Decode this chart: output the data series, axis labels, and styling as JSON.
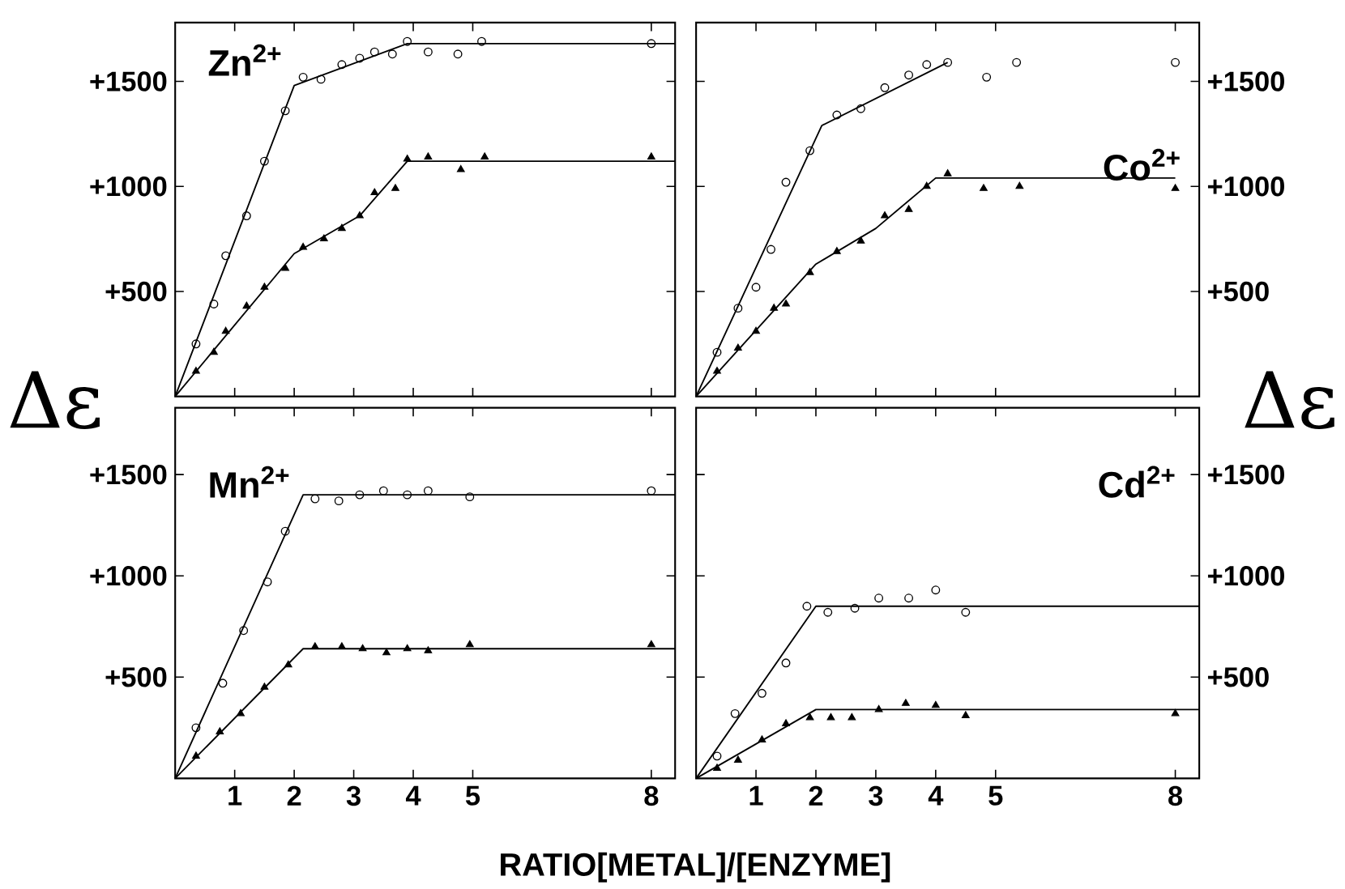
{
  "chart_data": [
    {
      "type": "scatter",
      "title": "Zn$^{2+}$",
      "ylabel": "Δε",
      "xlim": [
        0,
        8.4
      ],
      "ylim": [
        0,
        1780
      ],
      "xticks": [
        1,
        2,
        3,
        4,
        5,
        8
      ],
      "yticks": [
        {
          "value": 500,
          "label": "+500"
        },
        {
          "value": 1000,
          "label": "+1000"
        },
        {
          "value": 1500,
          "label": "+1500"
        }
      ],
      "tick_labels": "y",
      "series": [
        {
          "marker": "circle",
          "color": "#000000",
          "x": [
            0.35,
            0.65,
            0.85,
            1.2,
            1.5,
            1.85,
            2.15,
            2.45,
            2.8,
            3.1,
            3.35,
            3.65,
            3.9,
            4.25,
            4.75,
            5.15,
            8
          ],
          "values": [
            250,
            440,
            670,
            860,
            1120,
            1360,
            1520,
            1510,
            1580,
            1610,
            1640,
            1630,
            1690,
            1640,
            1630,
            1690,
            1680
          ]
        },
        {
          "marker": "triangle",
          "color": "#000000",
          "x": [
            0.35,
            0.65,
            0.85,
            1.2,
            1.5,
            1.85,
            2.15,
            2.5,
            2.8,
            3.1,
            3.35,
            3.7,
            3.9,
            4.25,
            4.8,
            5.2,
            8
          ],
          "values": [
            120,
            210,
            310,
            430,
            520,
            610,
            710,
            750,
            800,
            860,
            970,
            990,
            1130,
            1140,
            1080,
            1140,
            1140
          ]
        },
        {
          "type": "line",
          "color": "#000000",
          "x": [
            0,
            2,
            3.9,
            8.4
          ],
          "values": [
            0,
            1480,
            1680,
            1680
          ]
        },
        {
          "type": "line",
          "color": "#000000",
          "x": [
            0,
            2,
            3.1,
            3.9,
            8.4
          ],
          "values": [
            0,
            680,
            860,
            1120,
            1120
          ]
        }
      ]
    },
    {
      "type": "scatter",
      "title": "Co$^{2+}$",
      "y2label": "Δε",
      "xlim": [
        0,
        8.4
      ],
      "y2lim": [
        0,
        1780
      ],
      "xticks": [
        1,
        2,
        3,
        4,
        5,
        8
      ],
      "y2ticks": [
        {
          "value": 500,
          "label": "+500"
        },
        {
          "value": 1000,
          "label": "+1000"
        },
        {
          "value": 1500,
          "label": "+1500"
        }
      ],
      "tick_labels": "y",
      "series": [
        {
          "marker": "circle",
          "axis": "y2",
          "color": "#000000",
          "x": [
            0.35,
            0.7,
            1.0,
            1.25,
            1.5,
            1.9,
            2.35,
            2.75,
            3.15,
            3.55,
            3.85,
            4.2,
            4.85,
            5.35,
            8
          ],
          "values": [
            210,
            420,
            520,
            700,
            1020,
            1170,
            1340,
            1370,
            1470,
            1530,
            1580,
            1590,
            1520,
            1590,
            1590
          ]
        },
        {
          "marker": "triangle",
          "axis": "y2",
          "color": "#000000",
          "x": [
            0.35,
            0.7,
            1.0,
            1.3,
            1.5,
            1.9,
            2.35,
            2.75,
            3.15,
            3.55,
            3.85,
            4.2,
            4.8,
            5.4,
            8
          ],
          "values": [
            120,
            230,
            310,
            420,
            440,
            590,
            690,
            740,
            860,
            890,
            1000,
            1060,
            990,
            1000,
            990
          ]
        },
        {
          "type": "line",
          "axis": "y2",
          "color": "#000000",
          "x": [
            0,
            2.1,
            4.2
          ],
          "values": [
            0,
            1290,
            1590
          ]
        },
        {
          "type": "line",
          "axis": "y2",
          "color": "#000000",
          "x": [
            0,
            2,
            3,
            4,
            8
          ],
          "values": [
            0,
            630,
            800,
            1040,
            1040
          ]
        }
      ]
    },
    {
      "type": "scatter",
      "title": "Mn$^{2+}$",
      "xlabel": "RATIO[METAL]/[ENZYME]",
      "xlim": [
        0,
        8.4
      ],
      "ylim": [
        0,
        1830
      ],
      "xticks": [
        1,
        2,
        3,
        4,
        5,
        8
      ],
      "yticks": [
        {
          "value": 500,
          "label": "+500"
        },
        {
          "value": 1000,
          "label": "+1000"
        },
        {
          "value": 1500,
          "label": "+1500"
        }
      ],
      "series": [
        {
          "marker": "circle",
          "color": "#000000",
          "x": [
            0.35,
            0.8,
            1.15,
            1.55,
            1.85,
            2.35,
            2.75,
            3.1,
            3.5,
            3.9,
            4.25,
            4.95,
            8
          ],
          "values": [
            250,
            470,
            730,
            970,
            1220,
            1380,
            1370,
            1400,
            1420,
            1400,
            1420,
            1390,
            1420
          ]
        },
        {
          "marker": "triangle",
          "color": "#000000",
          "x": [
            0.35,
            0.75,
            1.1,
            1.5,
            1.9,
            2.35,
            2.8,
            3.15,
            3.55,
            3.9,
            4.25,
            4.95,
            8
          ],
          "values": [
            110,
            230,
            320,
            450,
            560,
            650,
            650,
            640,
            620,
            640,
            630,
            660,
            660
          ]
        },
        {
          "type": "line",
          "color": "#000000",
          "x": [
            0,
            2.15,
            8.4
          ],
          "values": [
            0,
            1400,
            1400
          ]
        },
        {
          "type": "line",
          "color": "#000000",
          "x": [
            0,
            2.15,
            8.4
          ],
          "values": [
            0,
            640,
            640
          ]
        }
      ]
    },
    {
      "type": "scatter",
      "title": "Cd$^{2+}$",
      "xlim": [
        0,
        8.4
      ],
      "y2lim": [
        0,
        1830
      ],
      "xticks": [
        1,
        2,
        3,
        4,
        5,
        8
      ],
      "y2ticks": [
        {
          "value": 500,
          "label": "+500"
        },
        {
          "value": 1000,
          "label": "+1000"
        },
        {
          "value": 1500,
          "label": "+1500"
        }
      ],
      "series": [
        {
          "marker": "circle",
          "axis": "y2",
          "color": "#000000",
          "x": [
            0.35,
            0.65,
            1.1,
            1.5,
            1.85,
            2.2,
            2.65,
            3.05,
            3.55,
            4.0,
            4.5
          ],
          "values": [
            110,
            320,
            420,
            570,
            850,
            820,
            840,
            890,
            890,
            930,
            820
          ]
        },
        {
          "marker": "triangle",
          "axis": "y2",
          "color": "#000000",
          "x": [
            0.35,
            0.7,
            1.1,
            1.5,
            1.9,
            2.25,
            2.6,
            3.05,
            3.5,
            4.0,
            4.5,
            8
          ],
          "values": [
            50,
            90,
            190,
            270,
            300,
            300,
            300,
            340,
            370,
            360,
            310,
            320
          ]
        },
        {
          "type": "line",
          "axis": "y2",
          "color": "#000000",
          "x": [
            0,
            2,
            8.4
          ],
          "values": [
            0,
            850,
            850
          ]
        },
        {
          "type": "line",
          "axis": "y2",
          "color": "#000000",
          "x": [
            0,
            2,
            8.4
          ],
          "values": [
            0,
            340,
            340
          ]
        }
      ]
    }
  ]
}
